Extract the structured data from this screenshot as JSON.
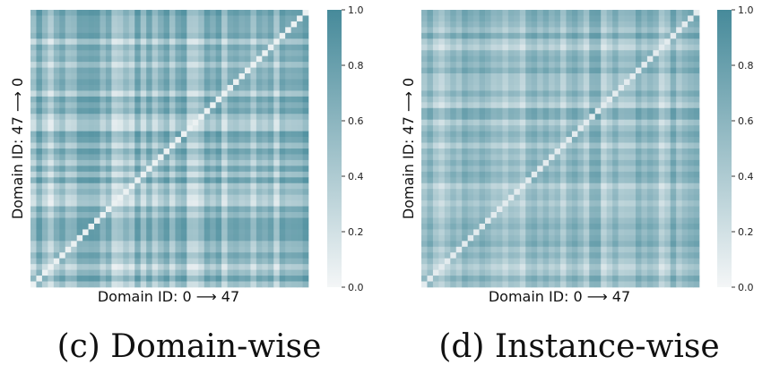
{
  "colors": {
    "low": "#f4f6f7",
    "high": "#468a9a"
  },
  "chart_data": [
    {
      "type": "heatmap",
      "caption": "(c) Domain-wise",
      "xlabel": "Domain ID: 0 ⟶ 47",
      "ylabel": "Domain ID: 47 ⟶ 0",
      "n": 48,
      "vlim": [
        0.0,
        1.0
      ],
      "colorbar_ticks": [
        "0.0",
        "0.2",
        "0.4",
        "0.6",
        "0.8",
        "1.0"
      ],
      "diagonal_value": 0.05,
      "mean_value": 0.62,
      "domain_values": [
        0.44,
        0.77,
        0.5,
        0.3,
        0.57,
        0.7,
        0.48,
        0.51,
        0.74,
        0.73,
        0.76,
        0.75,
        0.52,
        0.68,
        0.31,
        0.35,
        0.51,
        0.39,
        0.78,
        0.42,
        0.73,
        0.42,
        0.61,
        0.76,
        0.44,
        0.7,
        0.78,
        0.35,
        0.34,
        0.46,
        0.74,
        0.61,
        0.77,
        0.37,
        0.66,
        0.7,
        0.61,
        0.65,
        0.41,
        0.66,
        0.58,
        0.7,
        0.36,
        0.74,
        0.65,
        0.67,
        0.68,
        0.79
      ]
    },
    {
      "type": "heatmap",
      "caption": "(d) Instance-wise",
      "xlabel": "Domain ID: 0 ⟶ 47",
      "ylabel": "Domain ID: 47 ⟶ 0",
      "n": 48,
      "vlim": [
        0.0,
        1.0
      ],
      "colorbar_ticks": [
        "0.0",
        "0.2",
        "0.4",
        "0.6",
        "0.8",
        "1.0"
      ],
      "diagonal_value": 0.1,
      "mean_value": 0.58,
      "domain_values": [
        0.5,
        0.66,
        0.44,
        0.34,
        0.48,
        0.61,
        0.5,
        0.69,
        0.6,
        0.55,
        0.67,
        0.6,
        0.49,
        0.52,
        0.4,
        0.53,
        0.5,
        0.36,
        0.61,
        0.67,
        0.53,
        0.65,
        0.52,
        0.6,
        0.38,
        0.6,
        0.68,
        0.55,
        0.39,
        0.71,
        0.72,
        0.34,
        0.48,
        0.64,
        0.46,
        0.48,
        0.49,
        0.7,
        0.56,
        0.66,
        0.59,
        0.33,
        0.44,
        0.74,
        0.48,
        0.6,
        0.66,
        0.7
      ]
    }
  ]
}
